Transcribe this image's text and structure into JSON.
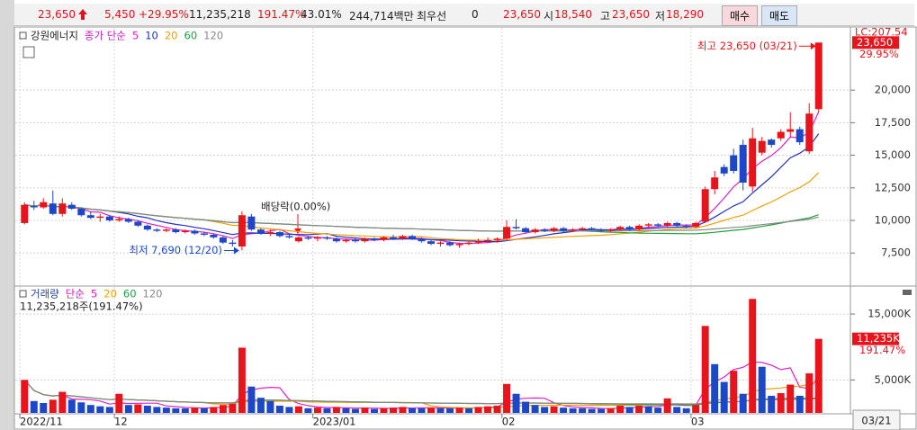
{
  "header": {
    "price": "23,650",
    "change": "5,450",
    "change_pct": "+29.95%",
    "volume": "11,235,218",
    "volume_ratio": "191.47%",
    "turnover": "43.01%",
    "amount": "244,714백만",
    "best_label": "최우선",
    "best_value": "0",
    "ask": "23,650",
    "open_label": "시",
    "open": "18,540",
    "high_label": "고",
    "high": "23,650",
    "low_label": "저",
    "low": "18,290",
    "buy": "매수",
    "sell": "매도"
  },
  "chart_data": [
    {
      "type": "candlestick",
      "title": "강원에너지",
      "ma_caption": "종가 단순",
      "categories": [
        "2022/11",
        null,
        null,
        null,
        null,
        null,
        null,
        null,
        null,
        null,
        "12",
        null,
        null,
        null,
        null,
        null,
        null,
        null,
        null,
        null,
        null,
        null,
        null,
        null,
        null,
        null,
        null,
        null,
        null,
        null,
        null,
        "2023/01",
        null,
        null,
        null,
        null,
        null,
        null,
        null,
        null,
        null,
        null,
        null,
        null,
        null,
        null,
        null,
        null,
        null,
        null,
        null,
        "02",
        null,
        null,
        null,
        null,
        null,
        null,
        null,
        null,
        null,
        null,
        null,
        null,
        null,
        null,
        null,
        null,
        null,
        null,
        null,
        "03",
        null,
        null,
        null,
        null,
        null,
        null,
        null,
        null,
        null,
        null,
        null,
        null,
        null
      ],
      "open": [
        9800,
        11100,
        11000,
        11300,
        10500,
        11200,
        10900,
        10400,
        10200,
        10300,
        10000,
        10100,
        9900,
        9600,
        9300,
        9200,
        9300,
        9100,
        9200,
        9000,
        8900,
        8700,
        8300,
        8000,
        10300,
        9300,
        9000,
        9100,
        8800,
        8400,
        8700,
        8600,
        8700,
        8600,
        8400,
        8500,
        8400,
        8600,
        8500,
        8700,
        8600,
        8800,
        8600,
        8400,
        8200,
        8300,
        8100,
        8200,
        8300,
        8400,
        8500,
        8600,
        9500,
        9400,
        9100,
        9300,
        9200,
        9400,
        9200,
        9300,
        9400,
        9300,
        9200,
        9300,
        9500,
        9300,
        9600,
        9700,
        9600,
        9800,
        9600,
        9500,
        9900,
        12400,
        14100,
        15000,
        15800,
        12600,
        15200,
        16200,
        16300,
        16800,
        17000,
        15300,
        18540
      ],
      "high": [
        11400,
        11500,
        11700,
        12300,
        11700,
        11400,
        11000,
        10700,
        10500,
        10400,
        10300,
        10200,
        10000,
        9700,
        9400,
        9400,
        9400,
        9300,
        9300,
        9100,
        9000,
        8800,
        8500,
        10700,
        10500,
        9400,
        9300,
        9200,
        9000,
        8800,
        8800,
        8800,
        8800,
        8700,
        8600,
        8600,
        8700,
        8700,
        8800,
        8900,
        8900,
        8900,
        8700,
        8500,
        8400,
        8400,
        8300,
        8400,
        8600,
        8700,
        8700,
        10000,
        10100,
        9500,
        9400,
        9400,
        9500,
        9500,
        9400,
        9500,
        9500,
        9400,
        9400,
        9600,
        9600,
        9700,
        9800,
        9800,
        9900,
        9900,
        9700,
        9900,
        12600,
        13800,
        14300,
        15500,
        16200,
        17100,
        16400,
        16300,
        17000,
        18300,
        17200,
        19000,
        23650
      ],
      "low": [
        9700,
        10800,
        10900,
        10400,
        10300,
        10800,
        10300,
        10100,
        9900,
        9900,
        9900,
        9800,
        9500,
        9200,
        9100,
        9100,
        9000,
        9000,
        8900,
        8800,
        8600,
        8200,
        8000,
        7690,
        9200,
        8900,
        8800,
        8700,
        8600,
        8300,
        8500,
        8400,
        8500,
        8300,
        8300,
        8300,
        8300,
        8400,
        8400,
        8500,
        8500,
        8500,
        8300,
        8100,
        8000,
        8000,
        7900,
        8100,
        8200,
        8300,
        8300,
        8500,
        9300,
        9000,
        9000,
        9100,
        9100,
        9100,
        9100,
        9200,
        9200,
        9100,
        9100,
        9200,
        9200,
        9200,
        9400,
        9500,
        9500,
        9500,
        9400,
        9400,
        9800,
        12000,
        13400,
        13600,
        12300,
        12200,
        15000,
        15600,
        16100,
        16400,
        15800,
        15100,
        18290
      ],
      "close": [
        11200,
        11000,
        11400,
        10500,
        11300,
        10900,
        10400,
        10200,
        10300,
        10000,
        10100,
        9900,
        9600,
        9300,
        9200,
        9300,
        9100,
        9200,
        9000,
        8900,
        8700,
        8300,
        8200,
        10400,
        9300,
        9000,
        9100,
        8800,
        8700,
        8700,
        8600,
        8700,
        8600,
        8400,
        8500,
        8400,
        8600,
        8500,
        8700,
        8600,
        8800,
        8600,
        8400,
        8200,
        8300,
        8100,
        8200,
        8300,
        8400,
        8500,
        8600,
        9500,
        9400,
        9100,
        9300,
        9200,
        9400,
        9200,
        9300,
        9400,
        9300,
        9200,
        9300,
        9500,
        9300,
        9600,
        9700,
        9600,
        9800,
        9600,
        9500,
        9800,
        12400,
        13300,
        13600,
        13800,
        12900,
        16300,
        16100,
        15800,
        16800,
        17000,
        16000,
        18200,
        23650
      ],
      "up_color": "#e8141c",
      "down_color": "#1c48c8",
      "ylim": [
        5100,
        24500
      ],
      "yticks": [
        {
          "value": 7500,
          "label": "7,500"
        },
        {
          "value": 10000,
          "label": "10,000"
        },
        {
          "value": 12500,
          "label": "12,500"
        },
        {
          "value": 15000,
          "label": "15,000"
        },
        {
          "value": 17500,
          "label": "17,500"
        },
        {
          "value": 20000,
          "label": "20,000"
        }
      ],
      "grid": true,
      "ma": [
        {
          "period": 5,
          "color": "#e020c8"
        },
        {
          "period": 10,
          "color": "#2232c0"
        },
        {
          "period": 20,
          "color": "#f0a000"
        },
        {
          "period": 60,
          "color": "#22a040"
        },
        {
          "period": 120,
          "color": "#888888"
        }
      ],
      "high_label": "최고 23,650 (03/21)",
      "low_label": "최저 7,690 (12/20)",
      "event_label": "배당락(0.00%)",
      "last_label": "23,650",
      "last_pct": "29.95%",
      "corner_label": "LC:207.54"
    },
    {
      "type": "bar",
      "title": "거래량",
      "ma_caption": "단순",
      "subtitle": "11,235,218주(191.47%)",
      "values": [
        5000,
        1800,
        1500,
        2000,
        3200,
        2000,
        1600,
        1200,
        1000,
        900,
        2900,
        1200,
        1300,
        1100,
        900,
        800,
        700,
        700,
        800,
        700,
        900,
        1200,
        1400,
        9900,
        4000,
        2300,
        1800,
        1100,
        900,
        1000,
        700,
        800,
        700,
        900,
        700,
        600,
        800,
        600,
        700,
        800,
        900,
        700,
        700,
        800,
        700,
        700,
        800,
        700,
        900,
        1000,
        1100,
        4400,
        2900,
        1700,
        1200,
        900,
        1000,
        800,
        700,
        700,
        600,
        600,
        700,
        1100,
        900,
        1100,
        1000,
        800,
        2200,
        900,
        700,
        1200,
        13200,
        7400,
        4700,
        6400,
        2900,
        17300,
        7000,
        2600,
        3000,
        4300,
        2600,
        6000,
        11235
      ],
      "up_color": "#e8141c",
      "down_color": "#1c48c8",
      "ylim": [
        0,
        18700
      ],
      "yticks": [
        {
          "value": 5000,
          "label": "5,000K"
        },
        {
          "value": 15000,
          "label": "15,000K"
        }
      ],
      "grid": true,
      "ma": [
        {
          "period": 5,
          "color": "#e020c8"
        },
        {
          "period": 20,
          "color": "#f0a000"
        },
        {
          "period": 60,
          "color": "#22a040"
        },
        {
          "period": 120,
          "color": "#888888"
        }
      ],
      "last_label": "11,235K",
      "last_pct": "191.47%",
      "date_label": "03/21"
    }
  ]
}
